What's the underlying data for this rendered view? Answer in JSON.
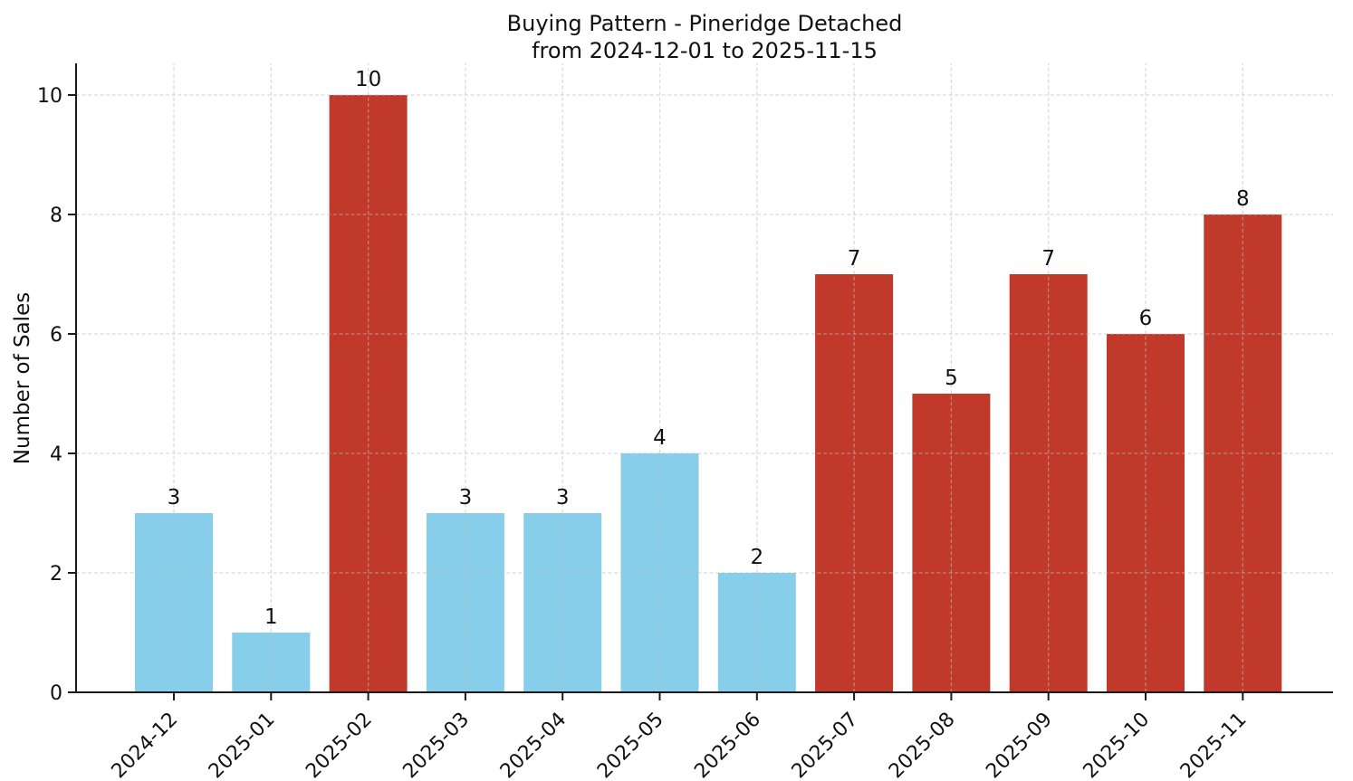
{
  "chart_data": {
    "type": "bar",
    "title": "Buying Pattern - Pineridge Detached",
    "subtitle": "from 2024-12-01 to 2025-11-15",
    "xlabel": "",
    "ylabel": "Number of Sales",
    "categories": [
      "2024-12",
      "2025-01",
      "2025-02",
      "2025-03",
      "2025-04",
      "2025-05",
      "2025-06",
      "2025-07",
      "2025-08",
      "2025-09",
      "2025-10",
      "2025-11"
    ],
    "values": [
      3,
      1,
      10,
      3,
      3,
      4,
      2,
      7,
      5,
      7,
      6,
      8
    ],
    "bar_colors": [
      "#87CEEB",
      "#87CEEB",
      "#C0392B",
      "#87CEEB",
      "#87CEEB",
      "#87CEEB",
      "#87CEEB",
      "#C0392B",
      "#C0392B",
      "#C0392B",
      "#C0392B",
      "#C0392B"
    ],
    "palette": {
      "skyblue": "#87CEEB",
      "brick_red": "#C0392B"
    },
    "yticks": [
      0,
      2,
      4,
      6,
      8,
      10
    ],
    "ylim": [
      0,
      10.55
    ],
    "grid": true,
    "grid_style": "dashed",
    "x_tick_rotation": 45,
    "legend": null
  }
}
